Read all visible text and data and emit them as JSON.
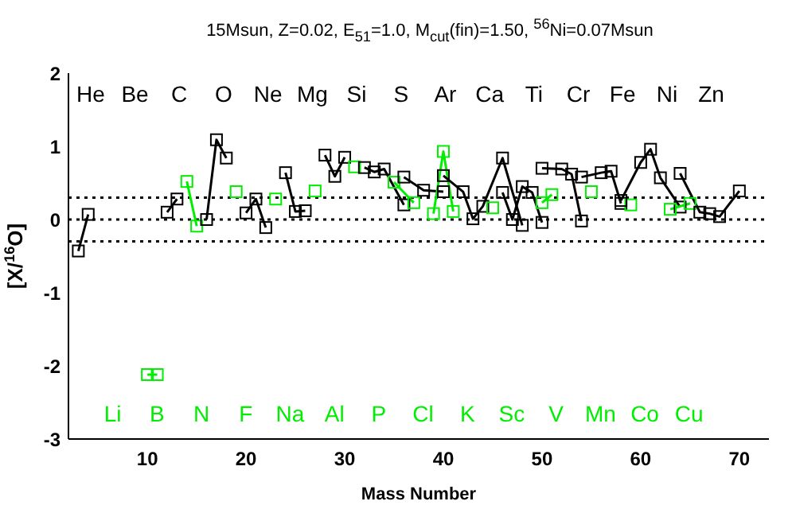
{
  "chart_data": {
    "type": "line",
    "title": "15Msun, Z=0.02, E$_{51}$=1.0, M$_{cut}$(fin)=1.50, $^{56}$Ni=0.07Msun",
    "xlabel": "Mass Number",
    "ylabel": "[X/$^{16}$O]",
    "xlim": [
      2,
      73
    ],
    "xticks": [
      10,
      20,
      30,
      40,
      50,
      60,
      70
    ],
    "ylim": [
      -3,
      2
    ],
    "yticks": [
      -3,
      -2,
      -1,
      0,
      1,
      2
    ],
    "grid": false,
    "legend": false,
    "marker": "square",
    "line_style": "solid",
    "ref_lines": [
      {
        "axis": "y",
        "value": 0.3,
        "line_style": "dotted"
      },
      {
        "axis": "y",
        "value": 0,
        "line_style": "dotted"
      },
      {
        "axis": "y",
        "value": -0.3,
        "line_style": "dotted"
      }
    ],
    "annotations": [
      "He",
      "Li",
      "Be",
      "B",
      "C",
      "N",
      "O",
      "F",
      "Ne",
      "Na",
      "Mg",
      "Al",
      "Si",
      "P",
      "S",
      "Cl",
      "Ar",
      "K",
      "Ca",
      "Sc",
      "Ti",
      "V",
      "Cr",
      "Mn",
      "Fe",
      "Co",
      "Ni",
      "Cu",
      "Zn"
    ],
    "series": [
      {
        "color": "#000000",
        "x": [
          3,
          4
        ],
        "values": [
          -0.43,
          0.07
        ]
      },
      {
        "color": "#00ee00",
        "x": [
          10,
          11
        ],
        "values": [
          -2.12,
          -2.12
        ]
      },
      {
        "color": "#000000",
        "x": [
          12,
          13
        ],
        "values": [
          0.1,
          0.28
        ]
      },
      {
        "color": "#00ee00",
        "x": [
          14,
          15
        ],
        "values": [
          0.52,
          -0.09
        ]
      },
      {
        "color": "#000000",
        "x": [
          16,
          17,
          18
        ],
        "values": [
          0,
          1.09,
          0.84
        ]
      },
      {
        "color": "#00ee00",
        "x": [
          19
        ],
        "values": [
          0.38
        ]
      },
      {
        "color": "#000000",
        "x": [
          20,
          21,
          22
        ],
        "values": [
          0.09,
          0.28,
          -0.11
        ]
      },
      {
        "color": "#00ee00",
        "x": [
          23
        ],
        "values": [
          0.28
        ]
      },
      {
        "color": "#000000",
        "x": [
          24,
          25,
          26
        ],
        "values": [
          0.64,
          0.11,
          0.12
        ]
      },
      {
        "color": "#00ee00",
        "x": [
          27
        ],
        "values": [
          0.39
        ]
      },
      {
        "color": "#000000",
        "x": [
          28,
          29,
          30
        ],
        "values": [
          0.88,
          0.59,
          0.85
        ]
      },
      {
        "color": "#00ee00",
        "x": [
          31
        ],
        "values": [
          0.72
        ]
      },
      {
        "color": "#000000",
        "x": [
          32,
          33,
          34,
          36
        ],
        "values": [
          0.71,
          0.65,
          0.69,
          0.2
        ]
      },
      {
        "color": "#00ee00",
        "x": [
          35,
          37
        ],
        "values": [
          0.51,
          0.23
        ]
      },
      {
        "color": "#000000",
        "x": [
          36,
          38,
          40
        ],
        "values": [
          0.58,
          0.4,
          0.38
        ]
      },
      {
        "color": "#00ee00",
        "x": [
          39,
          40,
          41
        ],
        "values": [
          0.08,
          0.93,
          0.11
        ]
      },
      {
        "color": "#000000",
        "x": [
          40,
          42,
          43,
          44,
          46,
          48
        ],
        "values": [
          0.6,
          0.38,
          0.01,
          0.18,
          0.84,
          -0.08
        ]
      },
      {
        "color": "#00ee00",
        "x": [
          45
        ],
        "values": [
          0.16
        ]
      },
      {
        "color": "#000000",
        "x": [
          46,
          47,
          48,
          49,
          50
        ],
        "values": [
          0.37,
          0,
          0.45,
          0.37,
          -0.04
        ]
      },
      {
        "color": "#00ee00",
        "x": [
          50,
          51
        ],
        "values": [
          0.23,
          0.34
        ]
      },
      {
        "color": "#000000",
        "x": [
          50,
          52,
          53,
          54
        ],
        "values": [
          0.7,
          0.69,
          0.62,
          -0.02
        ]
      },
      {
        "color": "#00ee00",
        "x": [
          55
        ],
        "values": [
          0.38
        ]
      },
      {
        "color": "#000000",
        "x": [
          54,
          56,
          57,
          58
        ],
        "values": [
          0.58,
          0.64,
          0.66,
          0.22
        ]
      },
      {
        "color": "#00ee00",
        "x": [
          59
        ],
        "values": [
          0.2
        ]
      },
      {
        "color": "#000000",
        "x": [
          58,
          60,
          61,
          62,
          64
        ],
        "values": [
          0.26,
          0.78,
          0.96,
          0.57,
          0.17
        ]
      },
      {
        "color": "#00ee00",
        "x": [
          63,
          65
        ],
        "values": [
          0.14,
          0.22
        ]
      },
      {
        "color": "#000000",
        "x": [
          64,
          66,
          67,
          68,
          70
        ],
        "values": [
          0.63,
          0.1,
          0.08,
          0.04,
          0.39
        ]
      }
    ]
  }
}
